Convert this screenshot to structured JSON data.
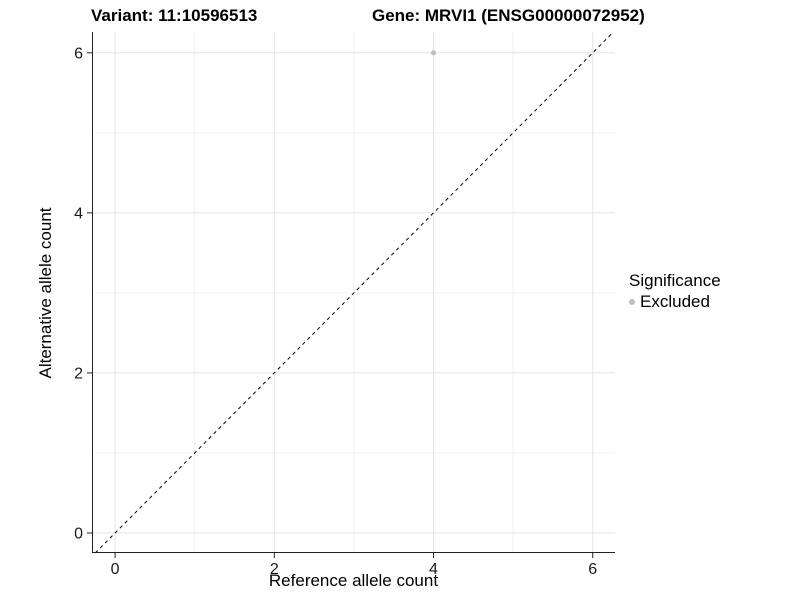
{
  "titles": {
    "variant": "Variant: 11:10596513",
    "gene": "Gene: MRVI1 (ENSG00000072952)"
  },
  "axes": {
    "x_label": "Reference allele count",
    "y_label": "Alternative allele count"
  },
  "legend": {
    "title": "Significance",
    "items": [
      {
        "label": "Excluded",
        "color": "#bdbdbd"
      }
    ]
  },
  "colors": {
    "background": "#ffffff",
    "grid_major": "#e4e4e4",
    "grid_minor": "#f0f0f0",
    "axis_line": "#222222",
    "tick_text": "#1a1a1a",
    "point": "#bdbdbd",
    "reference_line": "#000000"
  },
  "chart_data": {
    "type": "scatter",
    "title": "Variant: 11:10596513 / Gene: MRVI1 (ENSG00000072952)",
    "xlabel": "Reference allele count",
    "ylabel": "Alternative allele count",
    "xlim": [
      -0.29,
      6.28
    ],
    "ylim": [
      -0.25,
      6.26
    ],
    "x_ticks": [
      0,
      2,
      4,
      6
    ],
    "y_ticks": [
      0,
      2,
      4,
      6
    ],
    "x_minor_ticks": [
      1,
      3,
      5
    ],
    "y_minor_ticks": [
      1,
      3,
      5
    ],
    "grid": true,
    "legend_position": "right",
    "series": [
      {
        "name": "Excluded",
        "color": "#bdbdbd",
        "points": [
          {
            "x": 4,
            "y": 6
          }
        ]
      }
    ],
    "reference_line": {
      "kind": "identity",
      "style": "dashed",
      "color": "#000000"
    }
  }
}
